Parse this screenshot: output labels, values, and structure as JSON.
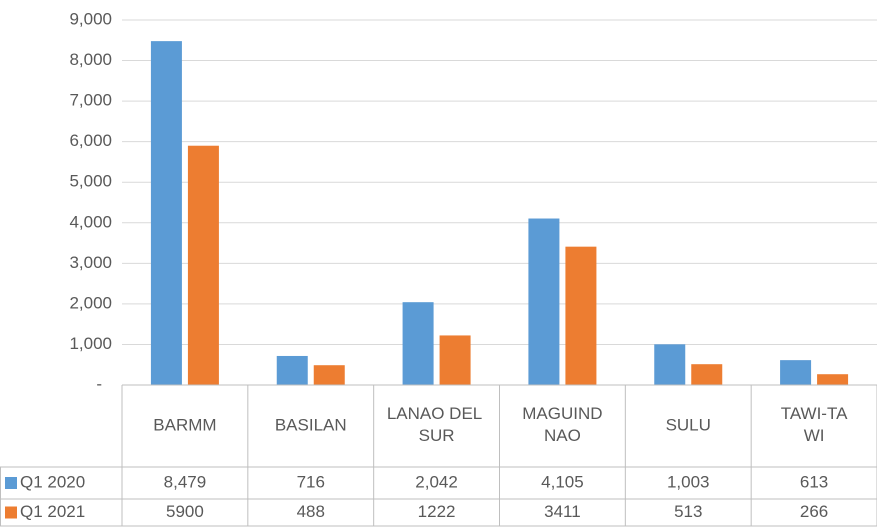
{
  "chart_data": {
    "type": "bar",
    "categories": [
      "BARMM",
      "BASILAN",
      "LANAO DEL SUR",
      "MAGUINDNAO",
      "SULU",
      "TAWI-TAWI"
    ],
    "series": [
      {
        "name": "Q1 2020",
        "color": "#5b9bd5",
        "values": [
          8479,
          716,
          2042,
          4105,
          1003,
          613
        ],
        "value_labels": [
          "8,479",
          "716",
          "2,042",
          "4,105",
          "1,003",
          "613"
        ]
      },
      {
        "name": "Q1 2021",
        "color": "#ed7d31",
        "values": [
          5900,
          488,
          1222,
          3411,
          513,
          266
        ]
      }
    ],
    "ylim": [
      0,
      9000
    ],
    "yticks": [
      {
        "value": 0,
        "label": "-"
      },
      {
        "value": 1000,
        "label": "1,000"
      },
      {
        "value": 2000,
        "label": "2,000"
      },
      {
        "value": 3000,
        "label": "3,000"
      },
      {
        "value": 4000,
        "label": "4,000"
      },
      {
        "value": 5000,
        "label": "5,000"
      },
      {
        "value": 6000,
        "label": "6,000"
      },
      {
        "value": 7000,
        "label": "7,000"
      },
      {
        "value": 8000,
        "label": "8,000"
      },
      {
        "value": 9000,
        "label": "9,000"
      }
    ],
    "grid": true,
    "data_table": true
  }
}
